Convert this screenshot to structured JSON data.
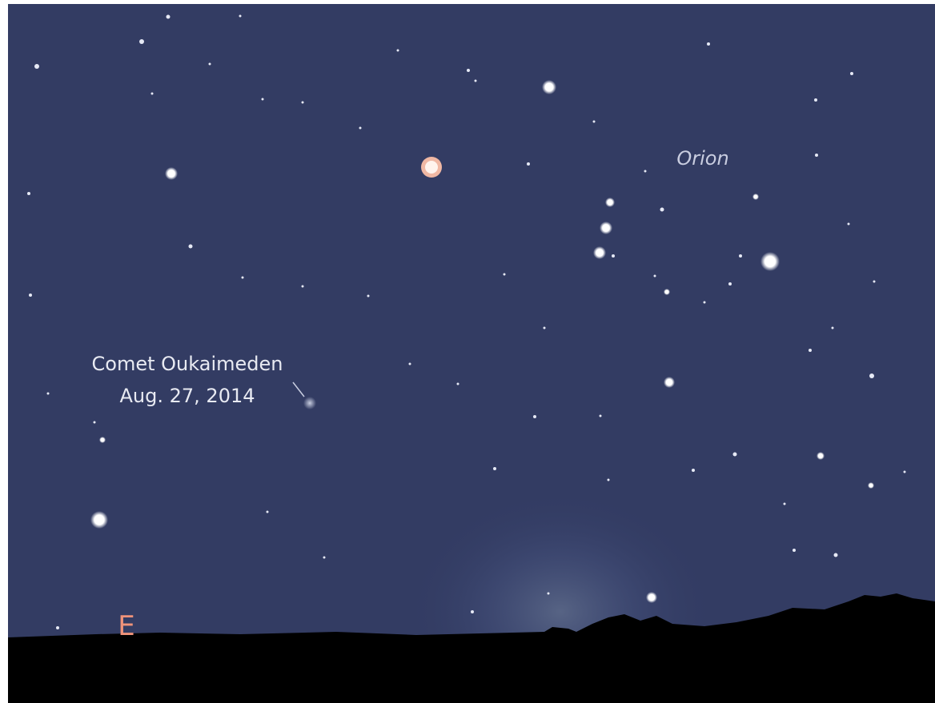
{
  "labels": {
    "constellation": "Orion",
    "comet_name": "Comet Oukaimeden",
    "comet_date": "Aug. 27, 2014",
    "direction": "E"
  }
}
